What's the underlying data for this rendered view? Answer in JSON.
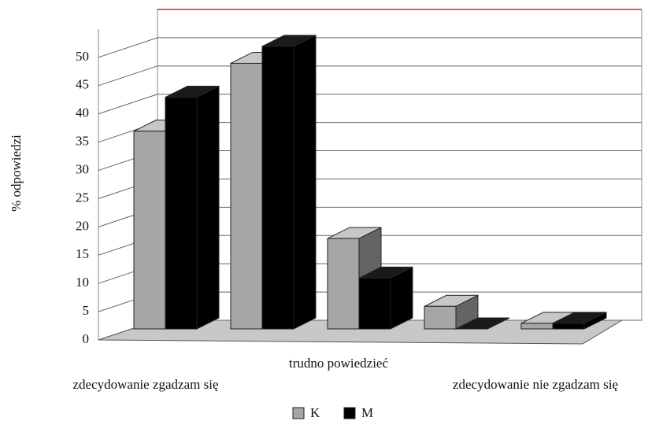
{
  "chart_data": {
    "type": "bar3d",
    "y_label": "% odpowiedzi",
    "categories": [
      "zdecydowanie zgadzam się",
      null,
      "trudno powiedzieć",
      null,
      "zdecydowanie nie zgadzam się"
    ],
    "series": [
      {
        "name": "K",
        "color": "#a6a6a6",
        "values": [
          35,
          47,
          16,
          4,
          1
        ]
      },
      {
        "name": "M",
        "color": "#000000",
        "values": [
          41,
          50,
          9,
          0,
          1
        ]
      }
    ],
    "ylim": [
      0,
      55
    ],
    "yticks": [
      0,
      5,
      10,
      15,
      20,
      25,
      30,
      35,
      40,
      45,
      50
    ],
    "grid": true
  }
}
